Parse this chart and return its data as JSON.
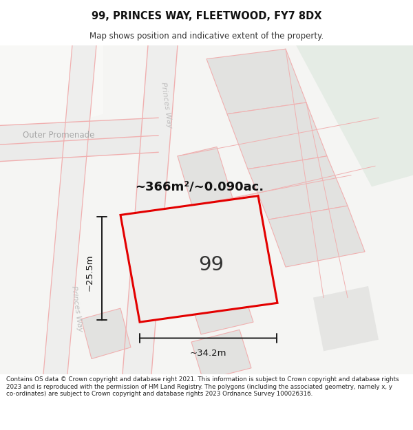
{
  "title": "99, PRINCES WAY, FLEETWOOD, FY7 8DX",
  "subtitle": "Map shows position and indicative extent of the property.",
  "footer": "Contains OS data © Crown copyright and database right 2021. This information is subject to Crown copyright and database rights 2023 and is reproduced with the permission of HM Land Registry. The polygons (including the associated geometry, namely x, y co-ordinates) are subject to Crown copyright and database rights 2023 Ordnance Survey 100026316.",
  "area_label": "~366m²/~0.090ac.",
  "width_label": "~34.2m",
  "height_label": "~25.5m",
  "number_label": "99",
  "road_label_upper": "Princes Way",
  "road_label_lower": "Princes Way",
  "outer_promenade_label": "Outer Promenade",
  "bg_color": "#ffffff",
  "plot_border": "#ff0000",
  "road_line_color": "#f0b0b0",
  "dim_line_color": "#1a1a1a"
}
